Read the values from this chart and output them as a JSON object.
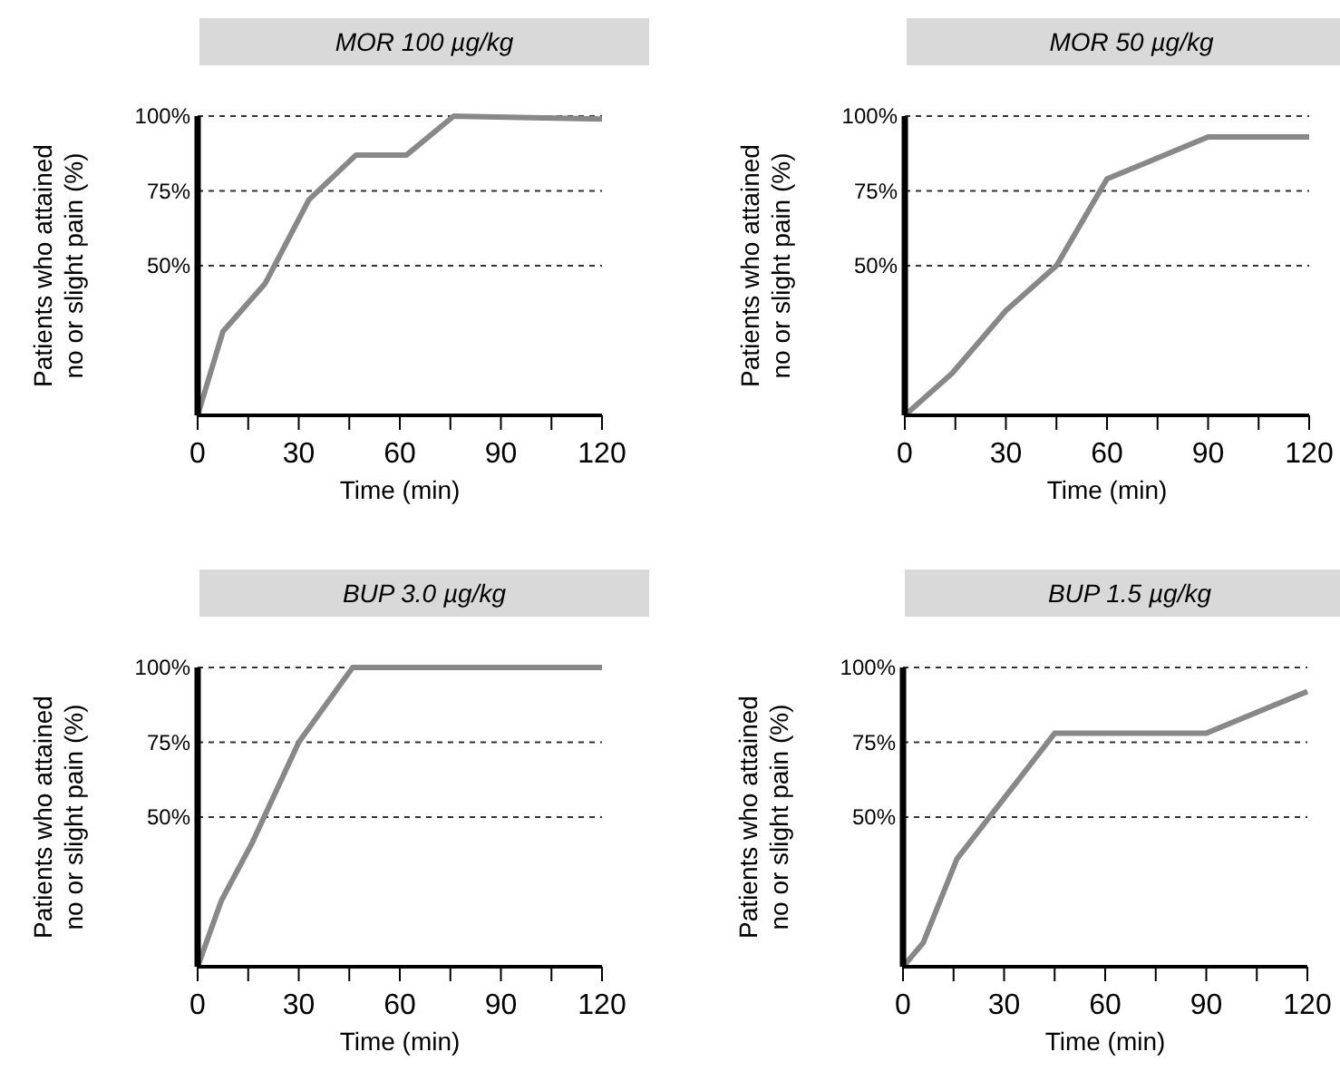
{
  "chart_data": [
    {
      "type": "line",
      "title": "MOR 100 µg/kg",
      "xlabel": "Time (min)",
      "ylabel": "Patients who attained\nno or slight pain (%)",
      "xlim": [
        0,
        120
      ],
      "ylim": [
        0,
        100
      ],
      "xticks": [
        0,
        {
          "value": 15,
          "label": null
        },
        30,
        {
          "value": 45,
          "label": null
        },
        60,
        {
          "value": 75,
          "label": null
        },
        90,
        {
          "value": 105,
          "label": null
        },
        120
      ],
      "yticks": [
        {
          "value": 50,
          "label": "50%"
        },
        {
          "value": 75,
          "label": "75%"
        },
        {
          "value": 100,
          "label": "100%"
        }
      ],
      "grid": "y",
      "series": [
        {
          "color": "#888888",
          "x": [
            0,
            7.5,
            20,
            33,
            47,
            62,
            76,
            120
          ],
          "values": [
            0,
            28,
            44,
            72,
            87,
            87,
            100,
            99
          ]
        }
      ]
    },
    {
      "type": "line",
      "title": "MOR 50 µg/kg",
      "xlabel": "Time (min)",
      "ylabel": "Patients who attained\nno or slight pain (%)",
      "xlim": [
        0,
        120
      ],
      "ylim": [
        0,
        100
      ],
      "xticks": [
        0,
        {
          "value": 15,
          "label": null
        },
        30,
        {
          "value": 45,
          "label": null
        },
        60,
        {
          "value": 75,
          "label": null
        },
        90,
        {
          "value": 105,
          "label": null
        },
        120
      ],
      "yticks": [
        {
          "value": 50,
          "label": "50%"
        },
        {
          "value": 75,
          "label": "75%"
        },
        {
          "value": 100,
          "label": "100%"
        }
      ],
      "grid": "y",
      "series": [
        {
          "color": "#888888",
          "x": [
            0,
            14,
            30,
            45,
            60,
            90,
            120
          ],
          "values": [
            0,
            14,
            35,
            50,
            79,
            93,
            93
          ]
        }
      ]
    },
    {
      "type": "line",
      "title": "BUP 3.0 µg/kg",
      "xlabel": "Time (min)",
      "ylabel": "Patients who attained\nno or slight pain (%)",
      "xlim": [
        0,
        120
      ],
      "ylim": [
        0,
        100
      ],
      "xticks": [
        0,
        {
          "value": 15,
          "label": null
        },
        30,
        {
          "value": 45,
          "label": null
        },
        60,
        {
          "value": 75,
          "label": null
        },
        90,
        {
          "value": 105,
          "label": null
        },
        120
      ],
      "yticks": [
        {
          "value": 50,
          "label": "50%"
        },
        {
          "value": 75,
          "label": "75%"
        },
        {
          "value": 100,
          "label": "100%"
        }
      ],
      "grid": "y",
      "series": [
        {
          "color": "#888888",
          "x": [
            0,
            7,
            16,
            30,
            46,
            120
          ],
          "values": [
            0,
            22,
            41,
            75,
            100,
            100
          ]
        }
      ]
    },
    {
      "type": "line",
      "title": "BUP 1.5 µg/kg",
      "xlabel": "Time (min)",
      "ylabel": "Patients who attained\nno or slight pain (%)",
      "xlim": [
        0,
        120
      ],
      "ylim": [
        0,
        100
      ],
      "xticks": [
        0,
        {
          "value": 15,
          "label": null
        },
        30,
        {
          "value": 45,
          "label": null
        },
        60,
        {
          "value": 75,
          "label": null
        },
        90,
        {
          "value": 105,
          "label": null
        },
        120
      ],
      "yticks": [
        {
          "value": 50,
          "label": "50%"
        },
        {
          "value": 75,
          "label": "75%"
        },
        {
          "value": 100,
          "label": "100%"
        }
      ],
      "grid": "y",
      "series": [
        {
          "color": "#888888",
          "x": [
            0,
            6,
            16,
            45,
            90,
            120
          ],
          "values": [
            0,
            8,
            36,
            78,
            78,
            92
          ]
        }
      ]
    }
  ]
}
